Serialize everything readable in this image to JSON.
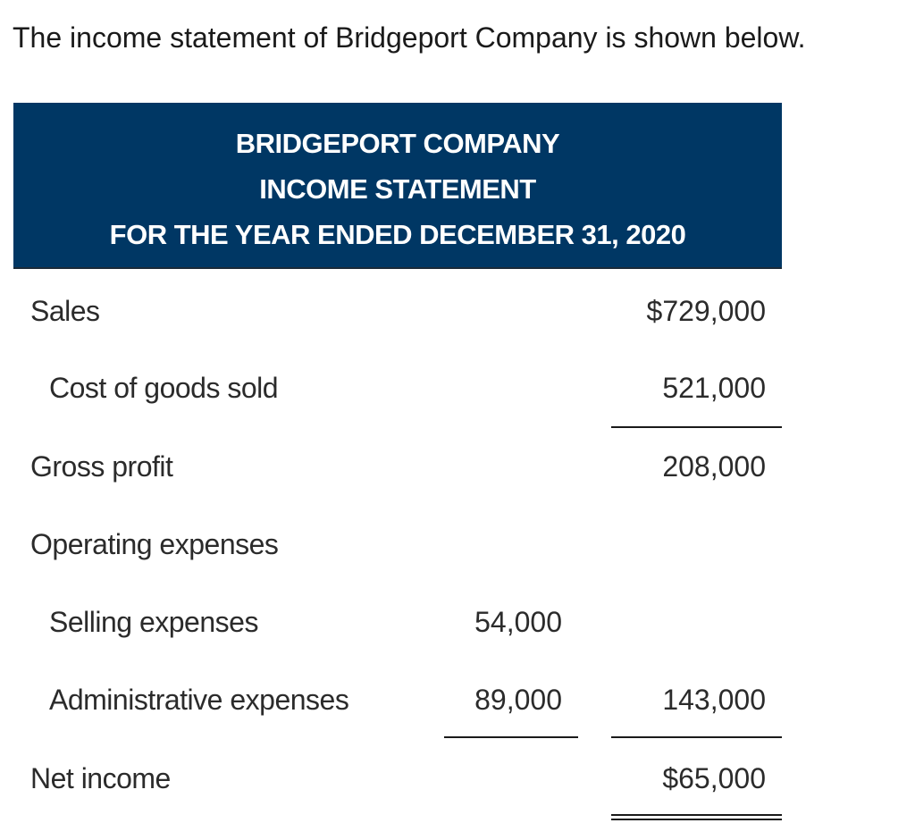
{
  "intro_text": "The income statement of Bridgeport Company is shown below.",
  "header": {
    "company": "BRIDGEPORT COMPANY",
    "statement": "INCOME STATEMENT",
    "period": "FOR THE YEAR ENDED DECEMBER 31, 2020"
  },
  "rows": [
    {
      "label": "Sales",
      "col1": "",
      "col2": "$729,000"
    },
    {
      "label": "Cost of goods sold",
      "col1": "",
      "col2": "521,000"
    },
    {
      "label": "Gross profit",
      "col1": "",
      "col2": "208,000"
    },
    {
      "label": "Operating expenses",
      "col1": "",
      "col2": ""
    },
    {
      "label": "Selling expenses",
      "col1": "54,000",
      "col2": ""
    },
    {
      "label": "Administrative expenses",
      "col1": "89,000",
      "col2": "143,000"
    },
    {
      "label": "Net income",
      "col1": "",
      "col2": "$65,000"
    }
  ],
  "colors": {
    "header_background": "#003764",
    "header_text": "#ffffff"
  }
}
